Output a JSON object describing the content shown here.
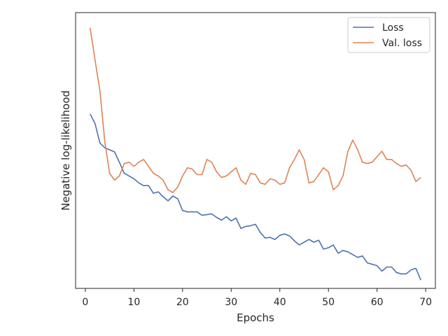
{
  "chart_data": {
    "type": "line",
    "title": "",
    "xlabel": "Epochs",
    "ylabel": "Negative log-likelihood",
    "xlim": [
      -2,
      72
    ],
    "ylim": [
      0.0,
      1.0
    ],
    "xticks": [
      0,
      10,
      20,
      30,
      40,
      50,
      60,
      70
    ],
    "yticks_shown": false,
    "grid": false,
    "legend_position": "top-right",
    "colors": {
      "loss": "#4c72b0",
      "val_loss": "#dd8452"
    },
    "x": [
      1,
      2,
      3,
      4,
      5,
      6,
      7,
      8,
      9,
      10,
      11,
      12,
      13,
      14,
      15,
      16,
      17,
      18,
      19,
      20,
      21,
      22,
      23,
      24,
      25,
      26,
      27,
      28,
      29,
      30,
      31,
      32,
      33,
      34,
      35,
      36,
      37,
      38,
      39,
      40,
      41,
      42,
      43,
      44,
      45,
      46,
      47,
      48,
      49,
      50,
      51,
      52,
      53,
      54,
      55,
      56,
      57,
      58,
      59,
      60,
      61,
      62,
      63,
      64,
      65,
      66,
      67,
      68,
      69
    ],
    "series": [
      {
        "name": "Loss",
        "color": "#4c72b0",
        "values": [
          0.6325,
          0.5975,
          0.5275,
          0.51,
          0.5025,
          0.495,
          0.4575,
          0.4175,
          0.4075,
          0.3975,
          0.3825,
          0.3725,
          0.3725,
          0.345,
          0.35,
          0.3325,
          0.3175,
          0.335,
          0.325,
          0.2825,
          0.2775,
          0.2775,
          0.2775,
          0.265,
          0.2675,
          0.27,
          0.2575,
          0.2475,
          0.26,
          0.245,
          0.255,
          0.2175,
          0.225,
          0.2275,
          0.2325,
          0.2025,
          0.1825,
          0.185,
          0.1775,
          0.1925,
          0.1975,
          0.19,
          0.1725,
          0.1575,
          0.1675,
          0.1775,
          0.1675,
          0.175,
          0.1425,
          0.1475,
          0.1575,
          0.1275,
          0.1375,
          0.1325,
          0.1225,
          0.1125,
          0.1175,
          0.0925,
          0.0875,
          0.0825,
          0.0625,
          0.0775,
          0.0775,
          0.0575,
          0.0525,
          0.0525,
          0.0675,
          0.0725,
          0.03
        ]
      },
      {
        "name": "Val. loss",
        "color": "#dd8452",
        "values": [
          0.945,
          0.8275,
          0.7175,
          0.5325,
          0.4175,
          0.3925,
          0.4075,
          0.4525,
          0.4575,
          0.4425,
          0.4575,
          0.4675,
          0.4425,
          0.4175,
          0.4075,
          0.3925,
          0.3575,
          0.3475,
          0.3675,
          0.4075,
          0.4375,
          0.4325,
          0.4125,
          0.4125,
          0.4675,
          0.4575,
          0.4225,
          0.4025,
          0.4075,
          0.4225,
          0.4375,
          0.3925,
          0.3775,
          0.4175,
          0.4125,
          0.3825,
          0.3775,
          0.3975,
          0.3925,
          0.3775,
          0.3825,
          0.4375,
          0.4675,
          0.5025,
          0.4675,
          0.3825,
          0.3875,
          0.4125,
          0.4375,
          0.4225,
          0.3575,
          0.3725,
          0.4075,
          0.4975,
          0.5375,
          0.5025,
          0.4575,
          0.4525,
          0.4575,
          0.4775,
          0.4975,
          0.4675,
          0.4675,
          0.4525,
          0.4425,
          0.4475,
          0.4275,
          0.3875,
          0.4025
        ]
      }
    ]
  }
}
